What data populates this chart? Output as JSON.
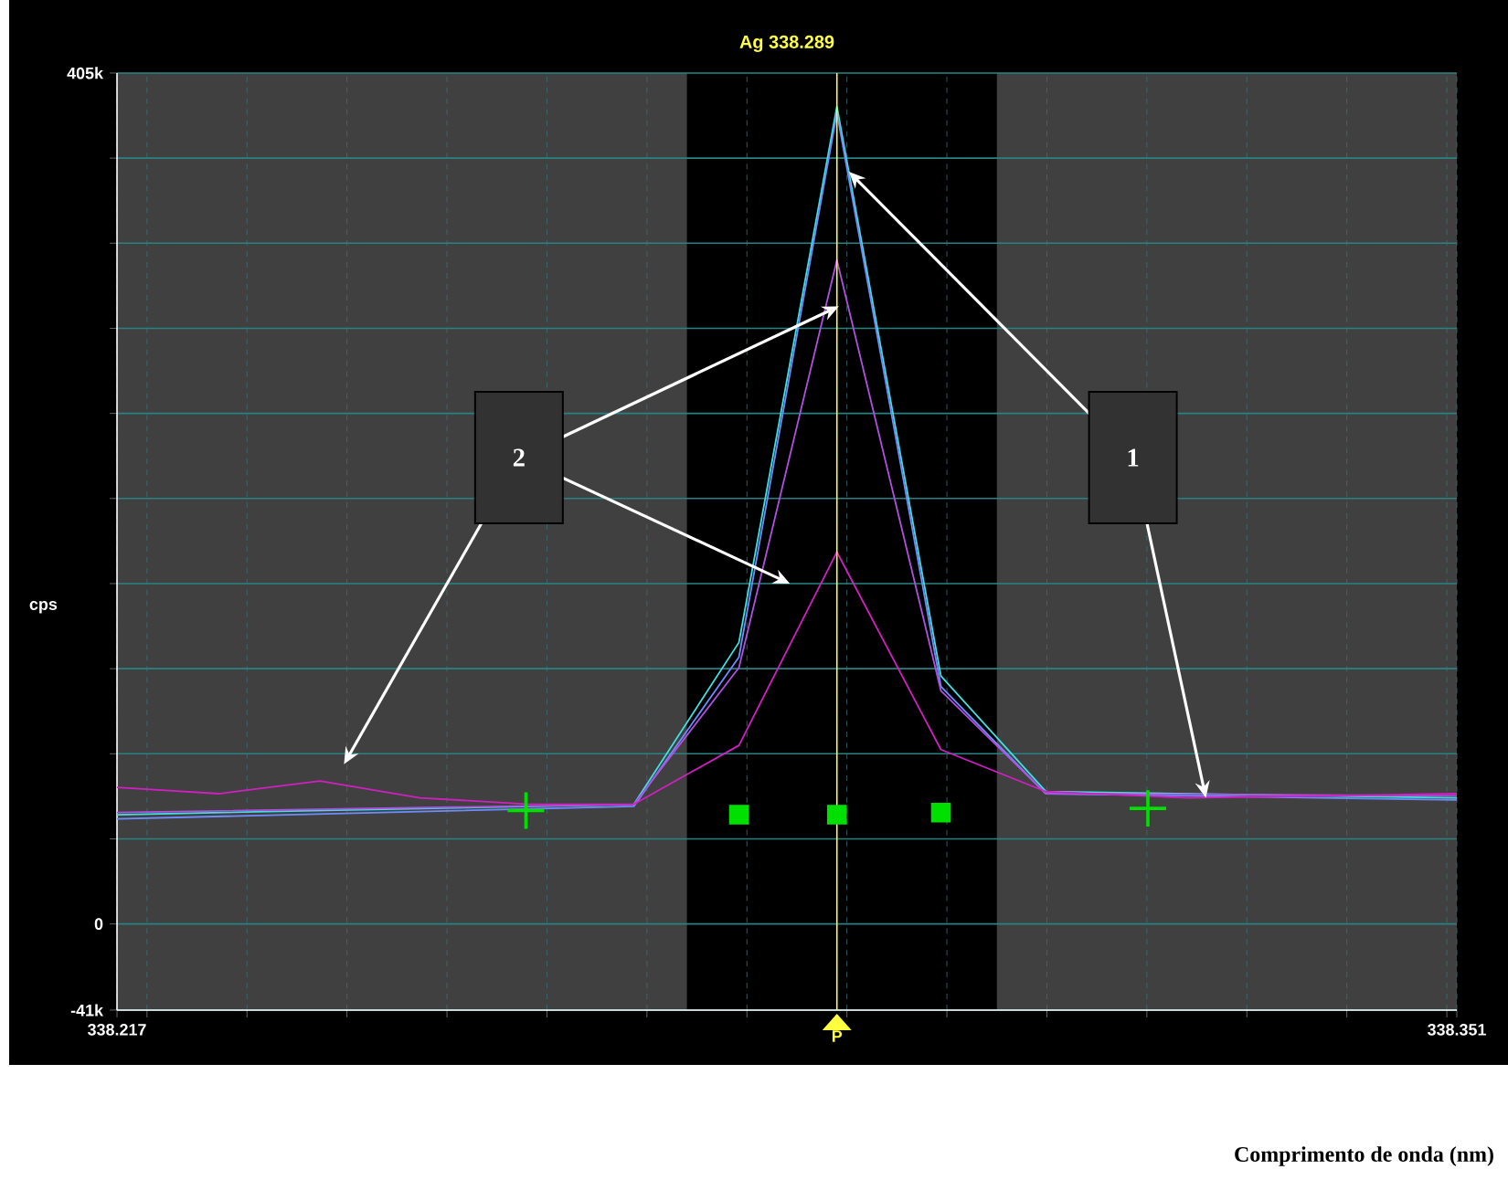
{
  "chart_data": {
    "type": "line",
    "title": "Ag 338.289",
    "ylabel": "cps",
    "xlim": [
      338.217,
      338.351
    ],
    "ylim": [
      -41000,
      405000
    ],
    "xticks": [
      338.217,
      {
        "value": 338.22,
        "label": null
      },
      {
        "value": 338.23,
        "label": null
      },
      {
        "value": 338.24,
        "label": null
      },
      {
        "value": 338.25,
        "label": null
      },
      {
        "value": 338.26,
        "label": null
      },
      {
        "value": 338.27,
        "label": null
      },
      {
        "value": 338.28,
        "label": null
      },
      {
        "value": 338.29,
        "label": null
      },
      {
        "value": 338.3,
        "label": null
      },
      {
        "value": 338.31,
        "label": null
      },
      {
        "value": 338.32,
        "label": null
      },
      {
        "value": 338.33,
        "label": null
      },
      {
        "value": 338.34,
        "label": null
      },
      {
        "value": 338.35,
        "label": null
      },
      338.351
    ],
    "yticks": [
      {
        "value": -41000,
        "label": "-41k"
      },
      0,
      {
        "value": 40500,
        "label": null
      },
      {
        "value": 81000,
        "label": null
      },
      {
        "value": 121500,
        "label": null
      },
      {
        "value": 162000,
        "label": null
      },
      {
        "value": 202500,
        "label": null
      },
      {
        "value": 243000,
        "label": null
      },
      {
        "value": 283500,
        "label": null
      },
      {
        "value": 324000,
        "label": null
      },
      {
        "value": 364500,
        "label": null
      },
      {
        "value": 405000,
        "label": "405k"
      }
    ],
    "grid": true,
    "series": [
      {
        "color": "#40e0e0",
        "x": [
          338.217,
          338.2687,
          338.2792,
          338.289,
          338.2994,
          338.3099,
          338.351
        ],
        "values": [
          52000,
          57000,
          134000,
          389000,
          118000,
          63000,
          60000
        ]
      },
      {
        "color": "#6f8cff",
        "x": [
          338.217,
          338.2687,
          338.2792,
          338.289,
          338.2994,
          338.3099,
          338.351
        ],
        "values": [
          50000,
          56000,
          127000,
          386000,
          113000,
          62000,
          59000
        ]
      },
      {
        "color": "#b050e0",
        "x": [
          338.217,
          338.2687,
          338.2792,
          338.289,
          338.2994,
          338.3099,
          338.351
        ],
        "values": [
          53000,
          57000,
          122000,
          316000,
          111000,
          62000,
          61000
        ]
      },
      {
        "color": "#d020c0",
        "x": [
          338.217,
          338.2272,
          338.2373,
          338.2473,
          338.2583,
          338.2687,
          338.2792,
          338.289,
          338.2994,
          338.3099,
          338.3241,
          338.351
        ],
        "values": [
          65000,
          62000,
          68000,
          60000,
          57000,
          57000,
          85000,
          177000,
          83000,
          63000,
          60000,
          62000
        ]
      },
      {
        "type": "scatter",
        "marker": "square",
        "color": "#00e000",
        "x": [
          338.2792,
          338.289,
          338.2994
        ],
        "values": [
          52000,
          52000,
          53000
        ]
      },
      {
        "type": "scatter",
        "marker": "cross",
        "color": "#00e000",
        "x": [
          338.2579,
          338.3201
        ],
        "values": [
          54000,
          55000
        ]
      }
    ],
    "ref_lines": [
      {
        "axis": "x",
        "value": 338.289,
        "label": "P",
        "color": "#ffff40"
      }
    ],
    "bands": [
      {
        "axis": "x",
        "from": 338.217,
        "to": 338.274,
        "color": "#404040"
      },
      {
        "axis": "x",
        "from": 338.305,
        "to": 338.351,
        "color": "#404040"
      }
    ],
    "annotations": [
      {
        "text": "2",
        "x": 338.2892,
        "y": 294000
      },
      {
        "text": "1",
        "x": 338.2902,
        "y": 358000
      },
      "Comprimento de onda (nm)"
    ]
  }
}
